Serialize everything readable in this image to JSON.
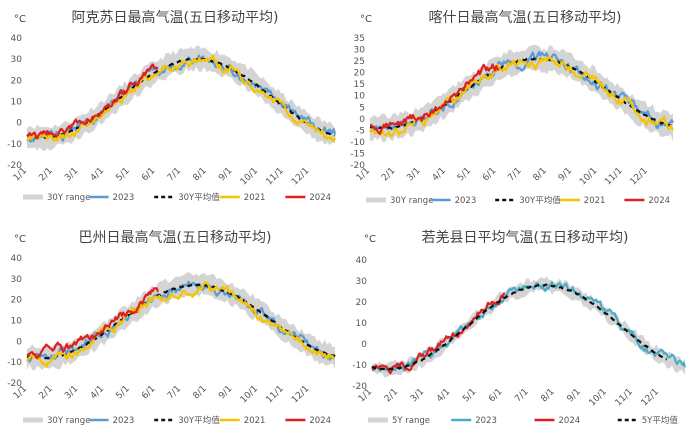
{
  "chart_data": [
    {
      "type": "line",
      "title": "阿克苏日最高气温(五日移动平均)",
      "unit": "°C",
      "y_ticks": [
        40,
        30,
        20,
        10,
        0,
        -10,
        -20
      ],
      "ylim": [
        -20,
        40
      ],
      "x_ticks": [
        "1/1",
        "2/1",
        "3/1",
        "4/1",
        "5/1",
        "6/1",
        "7/1",
        "8/1",
        "9/1",
        "10/1",
        "11/1",
        "12/1"
      ],
      "range_label": "30Y range",
      "series": [
        {
          "name": "2023",
          "color": "#5b9bd5",
          "offset": 0.0,
          "end_month": 12.0
        },
        {
          "name": "30Y平均值",
          "color": "#111111",
          "dashed": true,
          "end_month": 12.0
        },
        {
          "name": "2021",
          "color": "#f5c400",
          "offset": -1.0,
          "end_month": 12.0
        },
        {
          "name": "2024",
          "color": "#e02020",
          "offset": 1.8,
          "end_month": 5.1
        }
      ],
      "climatology": {
        "low": -7,
        "high": 30,
        "peak_month": 6.6
      },
      "range_half_width": 5
    },
    {
      "type": "line",
      "title": "喀什日最高气温(五日移动平均)",
      "unit": "°C",
      "y_ticks": [
        35,
        30,
        25,
        20,
        15,
        10,
        5,
        0,
        -5,
        -10,
        -15,
        -20
      ],
      "ylim": [
        -20,
        35
      ],
      "x_ticks": [
        "1/1",
        "2/1",
        "3/1",
        "4/1",
        "5/1",
        "6/1",
        "7/1",
        "8/1",
        "9/1",
        "10/1",
        "11/1",
        "12/1"
      ],
      "range_label": "30Y range",
      "series": [
        {
          "name": "2023",
          "color": "#5b9bd5",
          "offset": 0.0,
          "end_month": 12.0
        },
        {
          "name": "30Y平均值",
          "color": "#111111",
          "dashed": true,
          "end_month": 12.0
        },
        {
          "name": "2021",
          "color": "#f5c400",
          "offset": -1.0,
          "end_month": 12.0
        },
        {
          "name": "2024",
          "color": "#e02020",
          "offset": 2.0,
          "end_month": 5.1
        }
      ],
      "climatology": {
        "low": -4,
        "high": 26,
        "peak_month": 6.6
      },
      "range_half_width": 5
    },
    {
      "type": "line",
      "title": "巴州日最高气温(五日移动平均)",
      "unit": "°C",
      "y_ticks": [
        40,
        30,
        20,
        10,
        0,
        -10,
        -20
      ],
      "ylim": [
        -20,
        40
      ],
      "x_ticks": [
        "1/1",
        "2/1",
        "3/1",
        "4/1",
        "5/1",
        "6/1",
        "7/1",
        "8/1",
        "9/1",
        "10/1",
        "11/1",
        "12/1"
      ],
      "range_label": "30Y range",
      "series": [
        {
          "name": "2023",
          "color": "#5b9bd5",
          "offset": 0.0,
          "end_month": 12.0
        },
        {
          "name": "30Y平均值",
          "color": "#111111",
          "dashed": true,
          "end_month": 12.0
        },
        {
          "name": "2021",
          "color": "#f5c400",
          "offset": -1.0,
          "end_month": 12.0
        },
        {
          "name": "2024",
          "color": "#e02020",
          "offset": 2.0,
          "end_month": 5.1
        }
      ],
      "climatology": {
        "low": -8,
        "high": 27,
        "peak_month": 6.6
      },
      "range_half_width": 5
    },
    {
      "type": "line",
      "title": "若羌县日平均气温(五日移动平均)",
      "unit": "°C",
      "y_ticks": [
        40,
        30,
        20,
        10,
        0,
        -10,
        -20
      ],
      "ylim": [
        -20,
        40
      ],
      "x_ticks": [
        "1/1",
        "2/1",
        "3/1",
        "4/1",
        "5/1",
        "6/1",
        "7/1",
        "8/1",
        "9/1",
        "10/1",
        "11/1",
        "12/1"
      ],
      "range_label": "5Y range",
      "series": [
        {
          "name": "2023",
          "color": "#4bacc6",
          "offset": 0.0,
          "end_month": 12.0
        },
        {
          "name": "2024",
          "color": "#e02020",
          "offset": 1.5,
          "end_month": 5.1
        },
        {
          "name": "5Y平均值",
          "color": "#111111",
          "dashed": true,
          "end_month": 11.3
        }
      ],
      "climatology": {
        "low": -12,
        "high": 28,
        "peak_month": 6.6
      },
      "range_half_width": 3
    }
  ]
}
